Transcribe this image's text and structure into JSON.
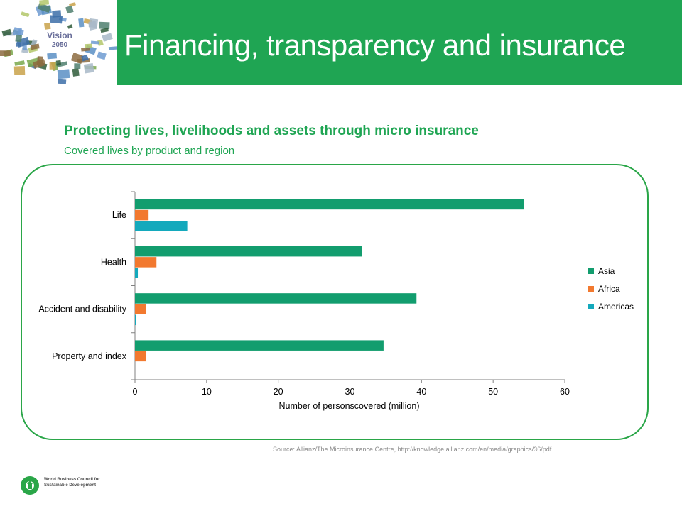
{
  "header": {
    "title": "Financing, transparency and insurance",
    "logo_text": "Vision",
    "logo_year": "2050",
    "accent_color": "#1fa553"
  },
  "subtitle": "Protecting lives, livelihoods and assets through micro insurance",
  "subsubtitle": "Covered lives by product and region",
  "source": "Source: Allianz/The Microinsurance Centre, http://knowledge.allianz.com/en/media/graphics/36/pdf",
  "footer": {
    "org_line1": "World Business Council for",
    "org_line2": "Sustainable Development"
  },
  "chart_data": {
    "type": "bar",
    "orientation": "horizontal",
    "categories": [
      "Life",
      "Health",
      "Accident and disability",
      "Property and index"
    ],
    "series": [
      {
        "name": "Asia",
        "color": "#129d6e",
        "values": [
          54.3,
          31.7,
          39.3,
          34.7
        ]
      },
      {
        "name": "Africa",
        "color": "#f2792f",
        "values": [
          1.9,
          3.0,
          1.5,
          1.5
        ]
      },
      {
        "name": "Americas",
        "color": "#14a9bc",
        "values": [
          7.3,
          0.4,
          0.1,
          0
        ]
      }
    ],
    "xlabel": "Number of personscovered (million)",
    "xlim": [
      0,
      60
    ],
    "xticks": [
      0,
      10,
      20,
      30,
      40,
      50,
      60
    ],
    "grid": false,
    "legend_position": "right"
  }
}
